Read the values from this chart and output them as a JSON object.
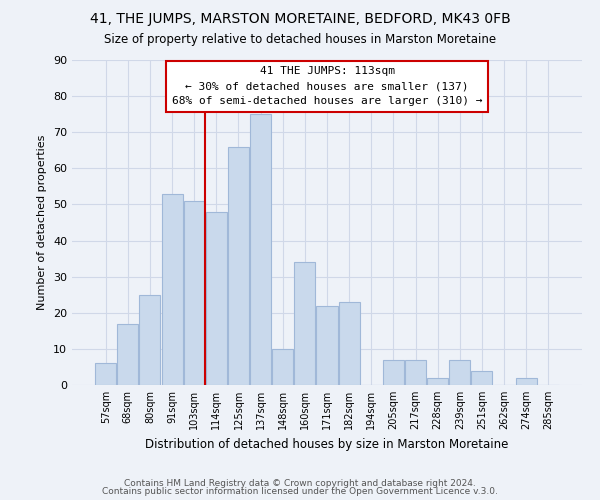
{
  "title": "41, THE JUMPS, MARSTON MORETAINE, BEDFORD, MK43 0FB",
  "subtitle": "Size of property relative to detached houses in Marston Moretaine",
  "xlabel": "Distribution of detached houses by size in Marston Moretaine",
  "ylabel": "Number of detached properties",
  "bar_labels": [
    "57sqm",
    "68sqm",
    "80sqm",
    "91sqm",
    "103sqm",
    "114sqm",
    "125sqm",
    "137sqm",
    "148sqm",
    "160sqm",
    "171sqm",
    "182sqm",
    "194sqm",
    "205sqm",
    "217sqm",
    "228sqm",
    "239sqm",
    "251sqm",
    "262sqm",
    "274sqm",
    "285sqm"
  ],
  "bar_values": [
    6,
    17,
    25,
    53,
    51,
    48,
    66,
    75,
    10,
    34,
    22,
    23,
    0,
    7,
    7,
    2,
    7,
    4,
    0,
    2,
    0
  ],
  "bar_color": "#c9d9ec",
  "bar_edge_color": "#a0b8d8",
  "vline_color": "#cc0000",
  "vline_index": 5,
  "annotation_lines": [
    "41 THE JUMPS: 113sqm",
    "← 30% of detached houses are smaller (137)",
    "68% of semi-detached houses are larger (310) →"
  ],
  "annotation_box_color": "#ffffff",
  "annotation_box_edge": "#cc0000",
  "ylim": [
    0,
    90
  ],
  "yticks": [
    0,
    10,
    20,
    30,
    40,
    50,
    60,
    70,
    80,
    90
  ],
  "grid_color": "#d0d8e8",
  "bg_color": "#eef2f8",
  "footer1": "Contains HM Land Registry data © Crown copyright and database right 2024.",
  "footer2": "Contains public sector information licensed under the Open Government Licence v.3.0."
}
